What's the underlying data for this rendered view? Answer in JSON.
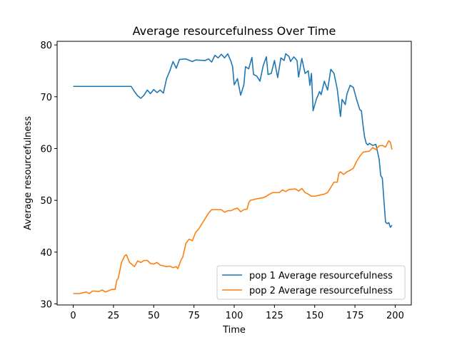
{
  "chart_data": {
    "type": "line",
    "title": "Average resourcefulness Over Time",
    "xlabel": "Time",
    "ylabel": "Average resourcefulness",
    "xlim": [
      -10,
      210
    ],
    "ylim": [
      29.8,
      80.7
    ],
    "xticks": [
      0,
      25,
      50,
      75,
      100,
      125,
      150,
      175,
      200
    ],
    "yticks": [
      30,
      40,
      50,
      60,
      70,
      80
    ],
    "grid": false,
    "legend_position": "lower-right",
    "series": [
      {
        "name": "pop 1 Average resourcefulness",
        "color": "#1f77b4",
        "points": [
          [
            0,
            72
          ],
          [
            10,
            72
          ],
          [
            20,
            72
          ],
          [
            30,
            72
          ],
          [
            36,
            72
          ],
          [
            38,
            71
          ],
          [
            40,
            70.2
          ],
          [
            42,
            69.7
          ],
          [
            44,
            70.3
          ],
          [
            46,
            71.3
          ],
          [
            48,
            70.6
          ],
          [
            50,
            71.4
          ],
          [
            52,
            70.8
          ],
          [
            54,
            71.3
          ],
          [
            56,
            70.7
          ],
          [
            58,
            73.5
          ],
          [
            60,
            75
          ],
          [
            62,
            76.8
          ],
          [
            64,
            75.5
          ],
          [
            66,
            77.2
          ],
          [
            70,
            77.3
          ],
          [
            74,
            76.8
          ],
          [
            76,
            77.1
          ],
          [
            82,
            77
          ],
          [
            84,
            77.3
          ],
          [
            86,
            76.7
          ],
          [
            88,
            78
          ],
          [
            90,
            77.5
          ],
          [
            92,
            78.2
          ],
          [
            94,
            77.5
          ],
          [
            96,
            78.3
          ],
          [
            98,
            76.8
          ],
          [
            99,
            75.8
          ],
          [
            100,
            72.3
          ],
          [
            102,
            73.5
          ],
          [
            104,
            70.3
          ],
          [
            106,
            72.3
          ],
          [
            107,
            75.8
          ],
          [
            109,
            75.4
          ],
          [
            111,
            77.6
          ],
          [
            112,
            74.3
          ],
          [
            114,
            74
          ],
          [
            116,
            73
          ],
          [
            118,
            76
          ],
          [
            120,
            77.7
          ],
          [
            121,
            74.3
          ],
          [
            123,
            74.5
          ],
          [
            125,
            77
          ],
          [
            127,
            73.7
          ],
          [
            129,
            77.5
          ],
          [
            131,
            77
          ],
          [
            132,
            78.3
          ],
          [
            134,
            77.8
          ],
          [
            135,
            76.8
          ],
          [
            137,
            77.7
          ],
          [
            139,
            77
          ],
          [
            140,
            73.8
          ],
          [
            142,
            77.4
          ],
          [
            144,
            74.5
          ],
          [
            146,
            75
          ],
          [
            147,
            72.2
          ],
          [
            148,
            74.5
          ],
          [
            149,
            67.3
          ],
          [
            151,
            69.5
          ],
          [
            153,
            71
          ],
          [
            154,
            70.4
          ],
          [
            156,
            73
          ],
          [
            158,
            71.3
          ],
          [
            160,
            75.3
          ],
          [
            162,
            74.5
          ],
          [
            164,
            71.5
          ],
          [
            166,
            66.2
          ],
          [
            167,
            69.5
          ],
          [
            169,
            68.5
          ],
          [
            170,
            70.5
          ],
          [
            172,
            72.2
          ],
          [
            174,
            71.8
          ],
          [
            176,
            69.5
          ],
          [
            178,
            67.5
          ],
          [
            179,
            67.3
          ],
          [
            180,
            64.5
          ],
          [
            181,
            62.2
          ],
          [
            182,
            61
          ],
          [
            183,
            60.7
          ],
          [
            184,
            61
          ],
          [
            186,
            60.6
          ],
          [
            188,
            60.8
          ],
          [
            190,
            58
          ],
          [
            191,
            54.8
          ],
          [
            192,
            54.3
          ],
          [
            193,
            50
          ],
          [
            194,
            45.8
          ],
          [
            195,
            45.5
          ],
          [
            196,
            45.7
          ],
          [
            197,
            44.8
          ],
          [
            198,
            45.2
          ]
        ]
      },
      {
        "name": "pop 2 Average resourcefulness",
        "color": "#ff7f0e",
        "points": [
          [
            0,
            32
          ],
          [
            4,
            32
          ],
          [
            8,
            32.3
          ],
          [
            10,
            32
          ],
          [
            12,
            32.5
          ],
          [
            16,
            32.4
          ],
          [
            18,
            32.7
          ],
          [
            20,
            32.3
          ],
          [
            24,
            32.8
          ],
          [
            26,
            32.8
          ],
          [
            27,
            34.5
          ],
          [
            28,
            35
          ],
          [
            30,
            38
          ],
          [
            32,
            39.3
          ],
          [
            33,
            39.5
          ],
          [
            35,
            38
          ],
          [
            37,
            37.5
          ],
          [
            38,
            37.2
          ],
          [
            40,
            38.3
          ],
          [
            42,
            38
          ],
          [
            44,
            38.4
          ],
          [
            46,
            38.4
          ],
          [
            48,
            37.8
          ],
          [
            50,
            37.7
          ],
          [
            52,
            38
          ],
          [
            54,
            37.5
          ],
          [
            58,
            37.2
          ],
          [
            60,
            37.3
          ],
          [
            62,
            37
          ],
          [
            64,
            37.2
          ],
          [
            65,
            36.8
          ],
          [
            67,
            38.5
          ],
          [
            68,
            39
          ],
          [
            70,
            41.7
          ],
          [
            72,
            42.5
          ],
          [
            74,
            42.2
          ],
          [
            76,
            43.8
          ],
          [
            78,
            44.5
          ],
          [
            80,
            45.5
          ],
          [
            82,
            46.5
          ],
          [
            84,
            47.5
          ],
          [
            86,
            48.2
          ],
          [
            92,
            48.2
          ],
          [
            94,
            47.7
          ],
          [
            96,
            48
          ],
          [
            98,
            48
          ],
          [
            100,
            48.3
          ],
          [
            102,
            48.5
          ],
          [
            104,
            47.8
          ],
          [
            106,
            48.2
          ],
          [
            108,
            48.3
          ],
          [
            109,
            49.5
          ],
          [
            110,
            50
          ],
          [
            114,
            50.3
          ],
          [
            118,
            50.5
          ],
          [
            120,
            50.8
          ],
          [
            122,
            51.2
          ],
          [
            124,
            51.5
          ],
          [
            128,
            51.5
          ],
          [
            130,
            52
          ],
          [
            132,
            51.7
          ],
          [
            134,
            52.1
          ],
          [
            138,
            52.2
          ],
          [
            140,
            51.8
          ],
          [
            142,
            52.3
          ],
          [
            144,
            51.5
          ],
          [
            146,
            51.2
          ],
          [
            148,
            50.8
          ],
          [
            150,
            50.8
          ],
          [
            156,
            51.2
          ],
          [
            158,
            51.5
          ],
          [
            160,
            52.5
          ],
          [
            162,
            53.5
          ],
          [
            164,
            53.5
          ],
          [
            165,
            55.2
          ],
          [
            166,
            55.5
          ],
          [
            168,
            55
          ],
          [
            170,
            55.5
          ],
          [
            172,
            55.8
          ],
          [
            174,
            56.2
          ],
          [
            176,
            57.5
          ],
          [
            178,
            58.5
          ],
          [
            180,
            59.3
          ],
          [
            184,
            59.5
          ],
          [
            186,
            60.2
          ],
          [
            188,
            59.8
          ],
          [
            190,
            60.5
          ],
          [
            192,
            60.6
          ],
          [
            194,
            60.3
          ],
          [
            196,
            61.5
          ],
          [
            197,
            61.2
          ],
          [
            198,
            59.8
          ]
        ]
      }
    ]
  }
}
